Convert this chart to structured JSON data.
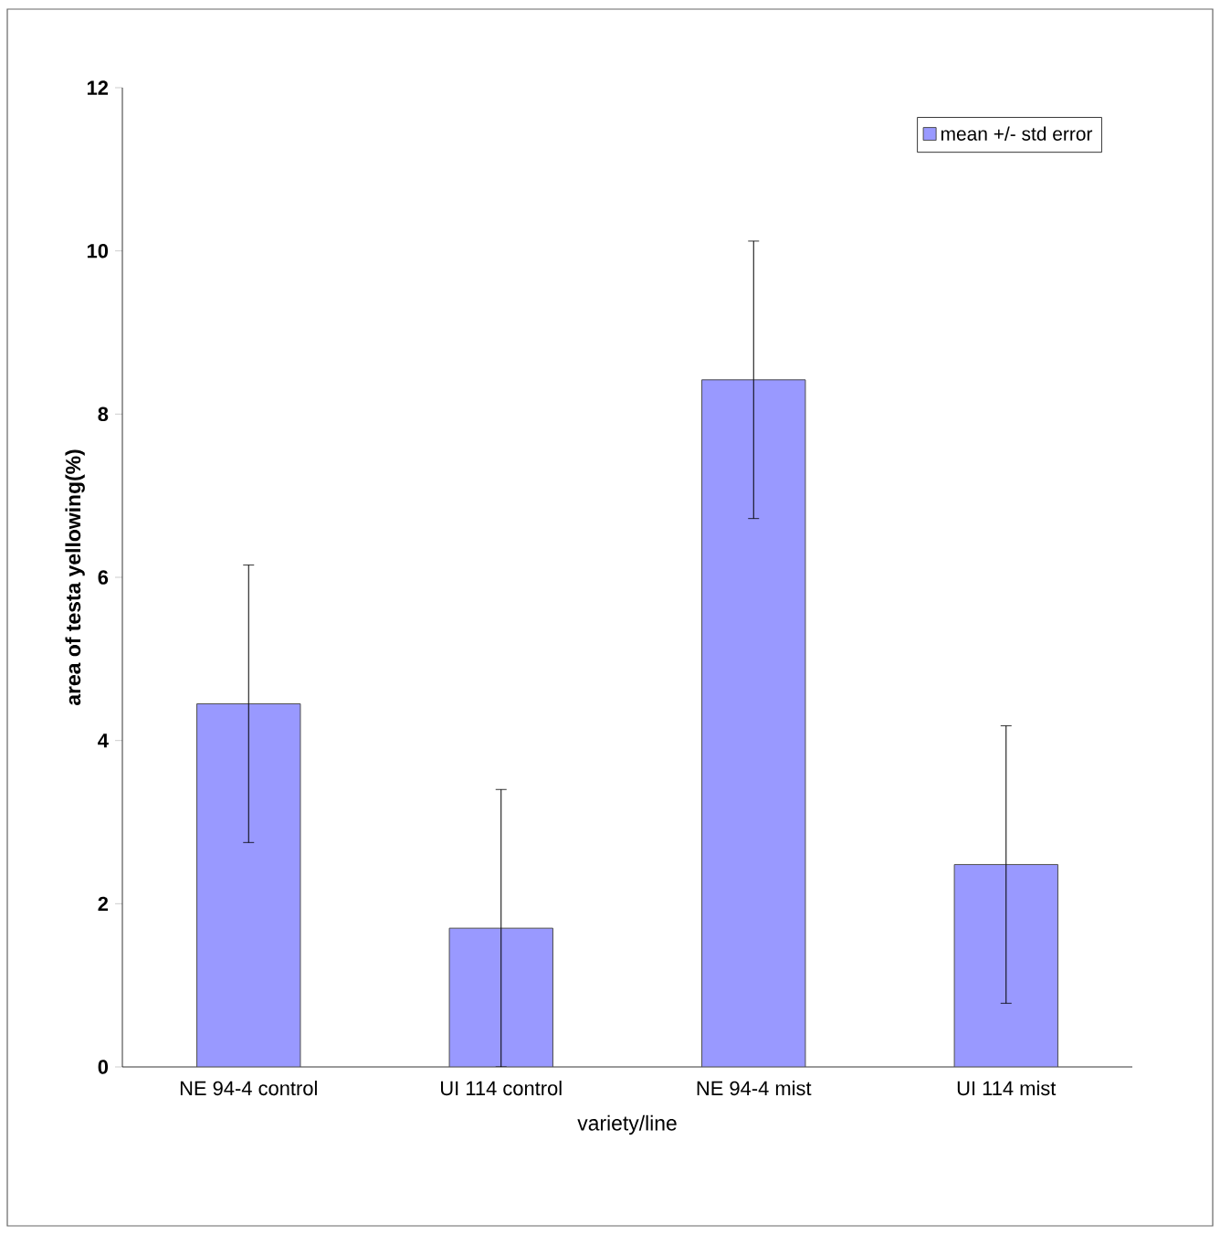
{
  "chart_data": {
    "type": "bar",
    "xlabel": "variety/line",
    "ylabel": "area of testa yellowing(%)",
    "categories": [
      "NE 94-4 control",
      "UI 114 control",
      "NE 94-4 mist",
      "UI 114 mist"
    ],
    "series": [
      {
        "name": "mean +/- std error",
        "color": "#9999ff",
        "values": [
          4.45,
          1.7,
          8.42,
          2.48
        ],
        "errors": [
          1.7,
          1.7,
          1.7,
          1.7
        ]
      }
    ],
    "ylim": [
      0,
      12
    ],
    "yticks": [
      0,
      2,
      4,
      6,
      8,
      10,
      12
    ],
    "legend": "top right",
    "grid": false
  }
}
